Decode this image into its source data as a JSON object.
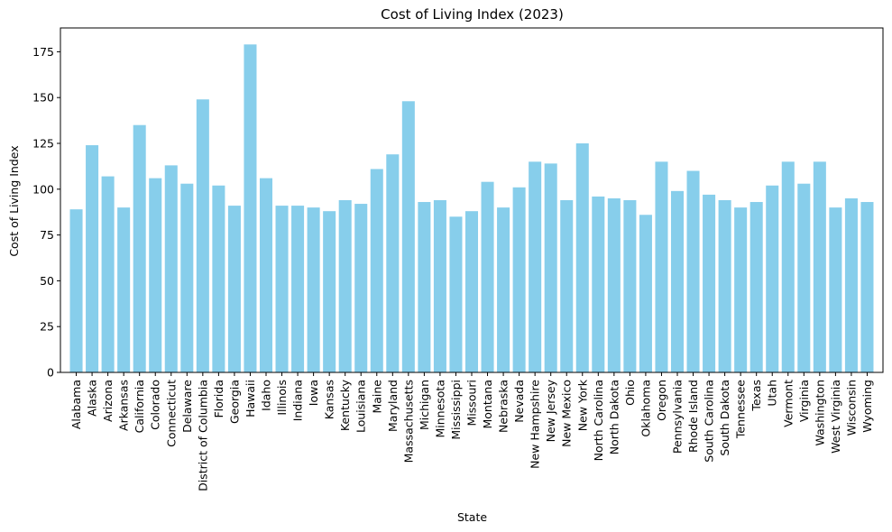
{
  "chart_data": {
    "type": "bar",
    "title": "Cost of Living Index (2023)",
    "xlabel": "State",
    "ylabel": "Cost of Living Index",
    "ylim": [
      0,
      188
    ],
    "yticks": [
      0,
      25,
      50,
      75,
      100,
      125,
      150,
      175
    ],
    "grid": false,
    "bar_color": "#87CEEB",
    "categories": [
      "Alabama",
      "Alaska",
      "Arizona",
      "Arkansas",
      "California",
      "Colorado",
      "Connecticut",
      "Delaware",
      "District of Columbia",
      "Florida",
      "Georgia",
      "Hawaii",
      "Idaho",
      "Illinois",
      "Indiana",
      "Iowa",
      "Kansas",
      "Kentucky",
      "Louisiana",
      "Maine",
      "Maryland",
      "Massachusetts",
      "Michigan",
      "Minnesota",
      "Mississippi",
      "Missouri",
      "Montana",
      "Nebraska",
      "Nevada",
      "New Hampshire",
      "New Jersey",
      "New Mexico",
      "New York",
      "North Carolina",
      "North Dakota",
      "Ohio",
      "Oklahoma",
      "Oregon",
      "Pennsylvania",
      "Rhode Island",
      "South Carolina",
      "South Dakota",
      "Tennessee",
      "Texas",
      "Utah",
      "Vermont",
      "Virginia",
      "Washington",
      "West Virginia",
      "Wisconsin",
      "Wyoming"
    ],
    "values": [
      89,
      124,
      107,
      90,
      135,
      106,
      113,
      103,
      149,
      102,
      91,
      179,
      106,
      91,
      91,
      90,
      88,
      94,
      92,
      111,
      119,
      148,
      93,
      94,
      85,
      88,
      104,
      90,
      101,
      115,
      114,
      94,
      125,
      96,
      95,
      94,
      86,
      115,
      99,
      110,
      97,
      94,
      90,
      93,
      102,
      115,
      103,
      115,
      90,
      95,
      93
    ]
  }
}
